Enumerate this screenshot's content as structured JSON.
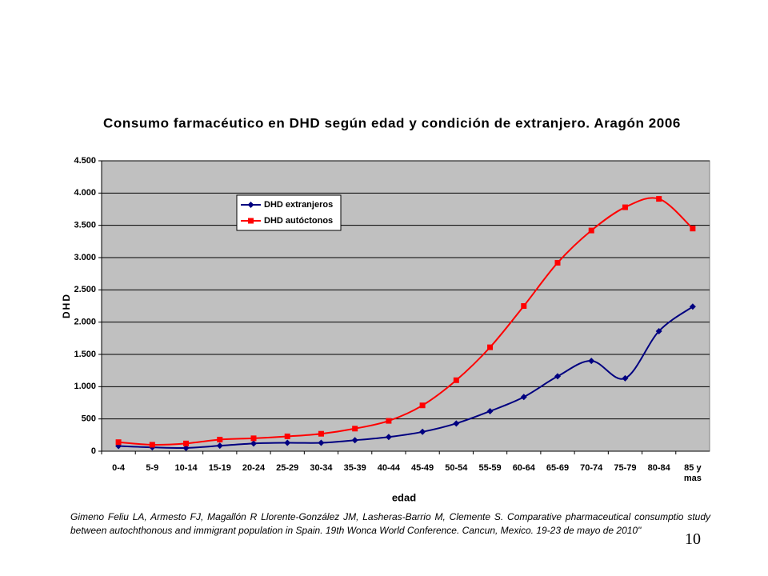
{
  "chart_data": {
    "type": "line",
    "title": "Consumo farmacéutico en DHD según edad y condición de extranjero. Aragón 2006",
    "x_label": "edad",
    "y_label": "DHD",
    "categories": [
      "0-4",
      "5-9",
      "10-14",
      "15-19",
      "20-24",
      "25-29",
      "30-34",
      "35-39",
      "40-44",
      "45-49",
      "50-54",
      "55-59",
      "60-64",
      "65-69",
      "70-74",
      "75-79",
      "80-84",
      "85 y mas"
    ],
    "series": [
      {
        "name": "DHD extranjeros",
        "color": "#000080",
        "marker": "diamond",
        "values": [
          80,
          60,
          50,
          85,
          120,
          130,
          130,
          170,
          220,
          300,
          430,
          620,
          840,
          1160,
          1400,
          1130,
          1860,
          2240
        ]
      },
      {
        "name": "DHD autóctonos",
        "color": "#ff0000",
        "marker": "square",
        "values": [
          140,
          100,
          120,
          180,
          200,
          230,
          270,
          350,
          470,
          710,
          1100,
          1610,
          2250,
          2920,
          3420,
          3780,
          3910,
          3450
        ]
      }
    ],
    "ylim": [
      0,
      4500
    ],
    "yticks": [
      0,
      500,
      {
        "value": 1000,
        "label": "1.000"
      },
      {
        "value": 1500,
        "label": "1.500"
      },
      {
        "value": 2000,
        "label": "2.000"
      },
      {
        "value": 2500,
        "label": "2.500"
      },
      {
        "value": 3000,
        "label": "3.000"
      },
      {
        "value": 3500,
        "label": "3.500"
      },
      {
        "value": 4000,
        "label": "4.000"
      },
      {
        "value": 4500,
        "label": "4.500"
      }
    ],
    "grid": true,
    "smooth": true,
    "legend": "upper left"
  },
  "citation": "Gimeno Feliu LA, Armesto FJ, Magallón R Llorente-González  JM, Lasheras-Barrio M, Clemente S. Comparative pharmaceutical consumptio study between autochthonous and immigrant population in Spain. 19th Wonca World Conference. Cancun, Mexico. 19-23 de mayo de 2010\"",
  "page_number": "10"
}
